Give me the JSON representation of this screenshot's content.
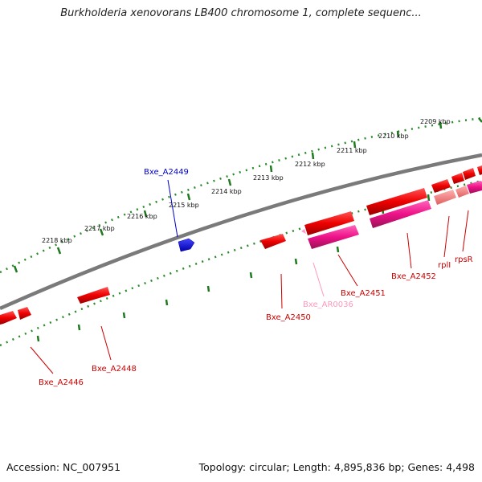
{
  "title": "Burkholderia xenovorans LB400 chromosome 1, complete sequenc...",
  "footer": {
    "accession": "Accession: NC_007951",
    "topology": "Topology: circular; Length: 4,895,836 bp; Genes: 4,498"
  },
  "colors": {
    "gene_forward": "#ee0000",
    "gene_reverse": "#ee0000",
    "pseudo": "#ee2288",
    "misc_rna": "#f08080",
    "rna_highlight": "#ff99cc",
    "selected": "#0000ee",
    "ruler": "#2a8a2a",
    "backbone": "#888888"
  },
  "kbp_ticks": [
    "2209 kbp",
    "2210 kbp",
    "2211 kbp",
    "2212 kbp",
    "2213 kbp",
    "2214 kbp",
    "2215 kbp",
    "2216 kbp",
    "2217 kbp",
    "2218 kbp"
  ],
  "gene_labels": [
    {
      "text": "Bxe_A2449",
      "color": "#0000cc"
    },
    {
      "text": "Bxe_A2446",
      "color": "#cc0000"
    },
    {
      "text": "Bxe_A2448",
      "color": "#cc0000"
    },
    {
      "text": "Bxe_A2450",
      "color": "#cc0000"
    },
    {
      "text": "Bxe_AR0036",
      "color": "#ff99bb"
    },
    {
      "text": "Bxe_A2451",
      "color": "#cc0000"
    },
    {
      "text": "Bxe_A2452",
      "color": "#cc0000"
    },
    {
      "text": "rplI",
      "color": "#cc0000"
    },
    {
      "text": "rpsR",
      "color": "#cc0000"
    }
  ]
}
